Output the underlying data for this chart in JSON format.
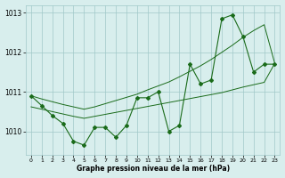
{
  "x": [
    0,
    1,
    2,
    3,
    4,
    5,
    6,
    7,
    8,
    9,
    10,
    11,
    12,
    13,
    14,
    15,
    16,
    17,
    18,
    19,
    20,
    21,
    22,
    23
  ],
  "y_main": [
    1010.9,
    1010.65,
    1010.4,
    1010.2,
    1009.75,
    1009.65,
    1010.1,
    1010.1,
    1009.85,
    1010.15,
    1010.85,
    1010.85,
    1011.0,
    1010.0,
    1010.15,
    1011.7,
    1011.2,
    1011.3,
    1012.85,
    1012.95,
    1012.4,
    1011.5,
    1011.7,
    1011.7
  ],
  "y_upper": [
    1010.9,
    1010.82,
    1010.75,
    1010.68,
    1010.62,
    1010.56,
    1010.62,
    1010.7,
    1010.78,
    1010.86,
    1010.94,
    1011.05,
    1011.15,
    1011.25,
    1011.38,
    1011.52,
    1011.66,
    1011.82,
    1012.0,
    1012.18,
    1012.38,
    1012.55,
    1012.7,
    1011.72
  ],
  "y_lower": [
    1010.62,
    1010.56,
    1010.5,
    1010.44,
    1010.38,
    1010.33,
    1010.38,
    1010.43,
    1010.48,
    1010.53,
    1010.58,
    1010.63,
    1010.68,
    1010.73,
    1010.78,
    1010.83,
    1010.88,
    1010.93,
    1010.98,
    1011.05,
    1011.12,
    1011.18,
    1011.24,
    1011.72
  ],
  "bg_color": "#d8eeed",
  "grid_color": "#a0c8c8",
  "line_color": "#1a6b1a",
  "xlabel": "Graphe pression niveau de la mer (hPa)",
  "ylim": [
    1009.4,
    1013.2
  ],
  "xlim": [
    -0.5,
    23.5
  ],
  "yticks": [
    1010,
    1011,
    1012,
    1013
  ],
  "xticks": [
    0,
    1,
    2,
    3,
    4,
    5,
    6,
    7,
    8,
    9,
    10,
    11,
    12,
    13,
    14,
    15,
    16,
    17,
    18,
    19,
    20,
    21,
    22,
    23
  ]
}
